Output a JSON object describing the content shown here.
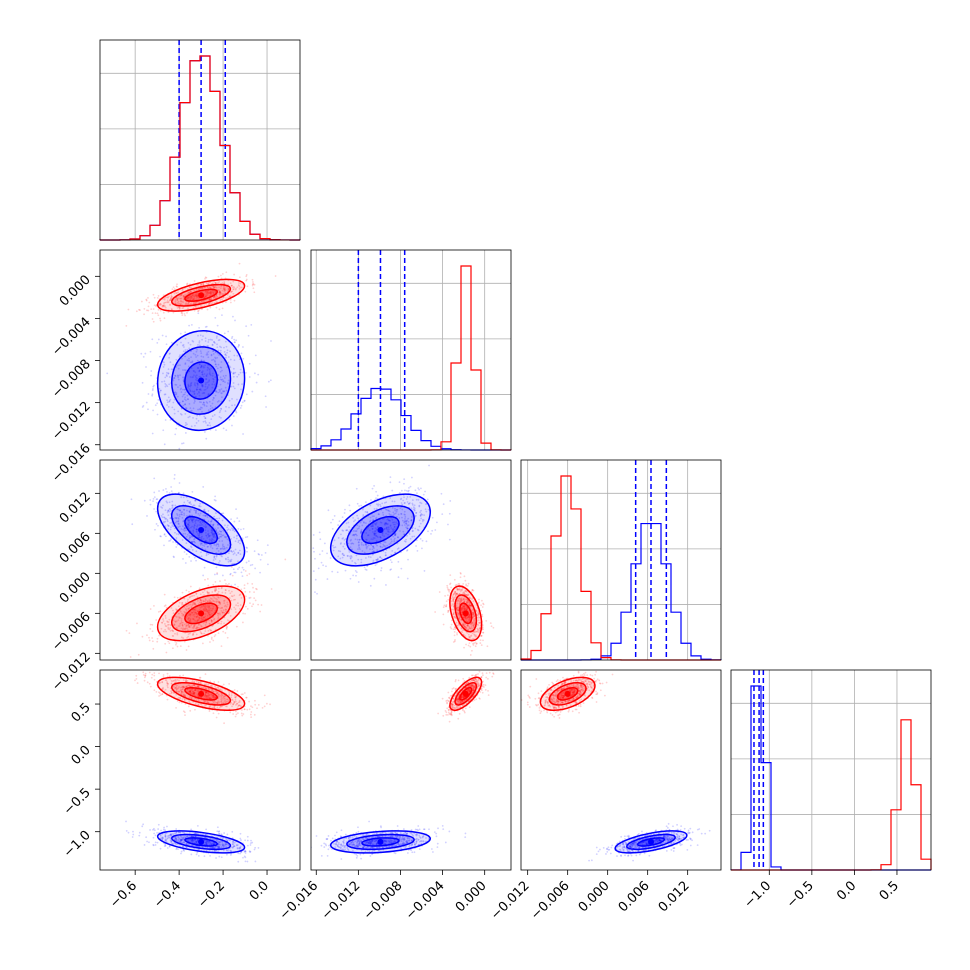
{
  "chart_data": {
    "type": "corner",
    "grid": true,
    "colors": {
      "series_a": "#0000ff",
      "series_b": "#ff0000"
    },
    "params": [
      {
        "range": [
          -0.76,
          0.15
        ],
        "ticks": [
          -0.6,
          -0.4,
          -0.2,
          0.0
        ],
        "tick_labels": [
          "−0.6",
          "−0.4",
          "−0.2",
          "0.0"
        ]
      },
      {
        "range": [
          -0.0165,
          0.0025
        ],
        "ticks": [
          -0.016,
          -0.012,
          -0.008,
          -0.004,
          0.0
        ],
        "tick_labels": [
          "−0.016",
          "−0.012",
          "−0.008",
          "−0.004",
          "0.000"
        ]
      },
      {
        "range": [
          -0.013,
          0.017
        ],
        "ticks": [
          -0.012,
          -0.006,
          0.0,
          0.006,
          0.012
        ],
        "tick_labels": [
          "−0.012",
          "−0.006",
          "0.000",
          "0.006",
          "0.012"
        ]
      },
      {
        "range": [
          -1.45,
          0.9
        ],
        "ticks": [
          -1.0,
          -0.5,
          0.0,
          0.5
        ],
        "tick_labels": [
          "−1.0",
          "−0.5",
          "0.0",
          "0.5"
        ]
      }
    ],
    "series": [
      {
        "color": "#0000ff",
        "mean": [
          -0.3,
          -0.0099,
          0.0065,
          -1.12
        ],
        "sd": [
          0.092,
          0.0022,
          0.0025,
          0.06
        ],
        "corr": [
          [
            0,
            0,
            0,
            0
          ],
          [
            0.05,
            0,
            0,
            0
          ],
          [
            -0.6,
            0.5,
            0,
            0
          ],
          [
            -0.5,
            0.3,
            0.6,
            0
          ]
        ],
        "quantiles": [
          [
            -0.4,
            -0.3,
            -0.19
          ],
          [
            -0.012,
            -0.0099,
            -0.0076
          ],
          [
            0.0042,
            0.0065,
            0.0088
          ],
          [
            -1.18,
            -1.12,
            -1.07
          ]
        ]
      },
      {
        "color": "#ff0000",
        "mean": [
          -0.3,
          -0.0018,
          -0.006,
          0.62
        ],
        "sd": [
          0.092,
          0.0007,
          0.0019,
          0.09
        ],
        "corr": [
          [
            0,
            0,
            0,
            0
          ],
          [
            0.6,
            0,
            0,
            0
          ],
          [
            0.5,
            -0.4,
            0,
            0
          ],
          [
            -0.6,
            0.7,
            0.5,
            0
          ]
        ]
      }
    ]
  }
}
